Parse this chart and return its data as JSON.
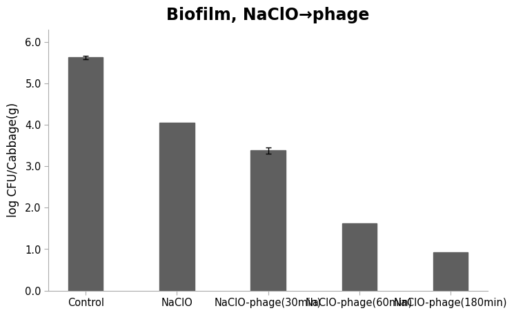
{
  "categories": [
    "Control",
    "NaClO",
    "NaClO-phage(30min)",
    "NaClO-phage(60min)",
    "NaClO-phage(180min)"
  ],
  "values": [
    5.63,
    4.05,
    3.38,
    1.62,
    0.93
  ],
  "errors": [
    0.04,
    0.0,
    0.07,
    0.0,
    0.0
  ],
  "bar_color": "#5f5f5f",
  "title": "Biofilm, NaClO→phage",
  "ylabel": "log CFU/Cabbage(g)",
  "ylim": [
    0.0,
    6.3
  ],
  "yticks": [
    0.0,
    1.0,
    2.0,
    3.0,
    4.0,
    5.0,
    6.0
  ],
  "ytick_labels": [
    "0.0",
    "1.0",
    "2.0",
    "3.0",
    "4.0",
    "5.0",
    "6.0"
  ],
  "title_fontsize": 17,
  "axis_fontsize": 12,
  "tick_fontsize": 10.5,
  "bar_width": 0.38,
  "background_color": "#ffffff"
}
